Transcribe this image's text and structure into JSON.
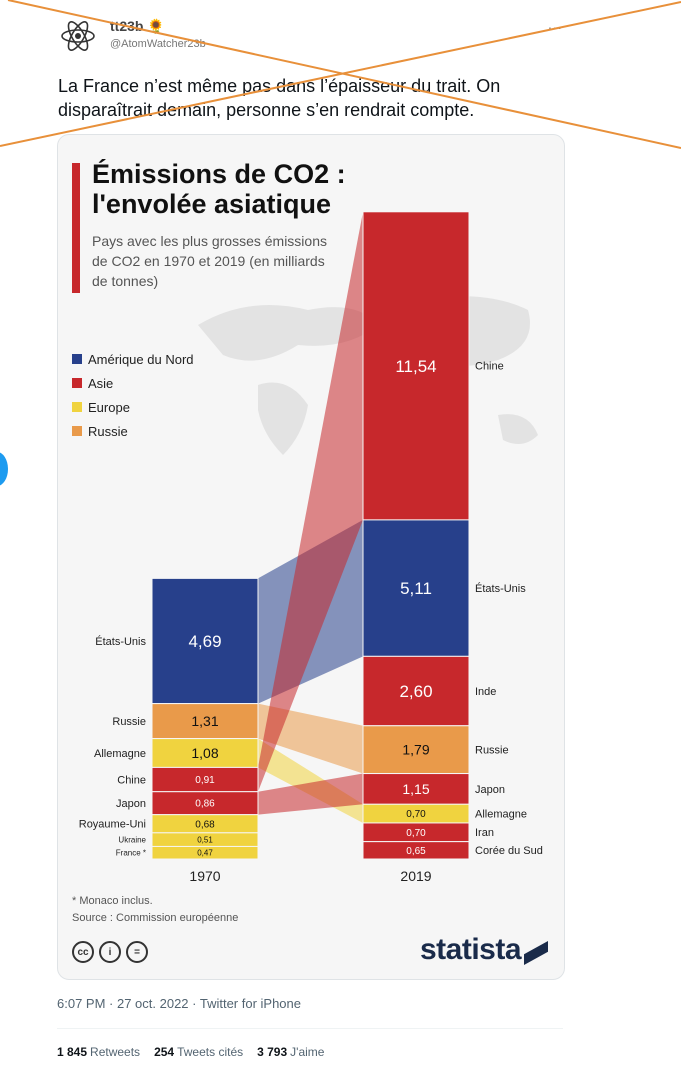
{
  "tweet": {
    "name": "tt23b",
    "handle": "@AtomWatcher23b",
    "more": "...",
    "text": "La France n’est même pas dans l’épaisseur du trait. On disparaîtrait demain, personne s’en rendrait compte.",
    "timestamp": "6:07 PM · 27 oct. 2022 · Twitter for iPhone",
    "stats": [
      {
        "count": "1 845",
        "label": "Retweets"
      },
      {
        "count": "254",
        "label": "Tweets cités"
      },
      {
        "count": "3 793",
        "label": "J'aime"
      }
    ]
  },
  "card": {
    "title": "Émissions de CO2 : l'envolée asiatique",
    "subtitle": "Pays avec les plus grosses émissions de CO2 en 1970 et 2019 (en milliards de tonnes)",
    "legend": [
      {
        "label": "Amérique du Nord",
        "color": "#27408b"
      },
      {
        "label": "Asie",
        "color": "#c7282c"
      },
      {
        "label": "Europe",
        "color": "#f0d33f"
      },
      {
        "label": "Russie",
        "color": "#e99a4a"
      }
    ],
    "note": "* Monaco inclus.",
    "source": "Source : Commission européenne",
    "brand": "statista",
    "license_icons": [
      "cc-icon",
      "by-icon",
      "nd-icon"
    ]
  },
  "chart_data": {
    "type": "bar",
    "title": "Émissions de CO2 : l'envolée asiatique",
    "x": [
      "1970",
      "2019"
    ],
    "series": [
      {
        "name": "1970",
        "bars": [
          {
            "country": "États-Unis",
            "value": 4.69,
            "label": "4,69",
            "region": "Amérique du Nord"
          },
          {
            "country": "Russie",
            "value": 1.31,
            "label": "1,31",
            "region": "Russie"
          },
          {
            "country": "Allemagne",
            "value": 1.08,
            "label": "1,08",
            "region": "Europe"
          },
          {
            "country": "Chine",
            "value": 0.91,
            "label": "0,91",
            "region": "Asie"
          },
          {
            "country": "Japon",
            "value": 0.86,
            "label": "0,86",
            "region": "Asie"
          },
          {
            "country": "Royaume-Uni",
            "value": 0.68,
            "label": "0,68",
            "region": "Europe"
          },
          {
            "country": "Ukraine",
            "value": 0.51,
            "label": "0,51",
            "region": "Europe"
          },
          {
            "country": "France *",
            "value": 0.47,
            "label": "0,47",
            "region": "Europe"
          }
        ]
      },
      {
        "name": "2019",
        "bars": [
          {
            "country": "Chine",
            "value": 11.54,
            "label": "11,54",
            "region": "Asie"
          },
          {
            "country": "États-Unis",
            "value": 5.11,
            "label": "5,11",
            "region": "Amérique du Nord"
          },
          {
            "country": "Inde",
            "value": 2.6,
            "label": "2,60",
            "region": "Asie"
          },
          {
            "country": "Russie",
            "value": 1.79,
            "label": "1,79",
            "region": "Russie"
          },
          {
            "country": "Japon",
            "value": 1.15,
            "label": "1,15",
            "region": "Asie"
          },
          {
            "country": "Allemagne",
            "value": 0.7,
            "label": "0,70",
            "region": "Europe"
          },
          {
            "country": "Iran",
            "value": 0.7,
            "label": "0,70",
            "region": "Asie"
          },
          {
            "country": "Corée du Sud",
            "value": 0.65,
            "label": "0,65",
            "region": "Asie"
          }
        ]
      }
    ]
  },
  "colors": {
    "north_america": "#27408b",
    "asia": "#c7282c",
    "europe": "#f0d33f",
    "russia": "#e99a4a",
    "strike": "#e8903a"
  }
}
